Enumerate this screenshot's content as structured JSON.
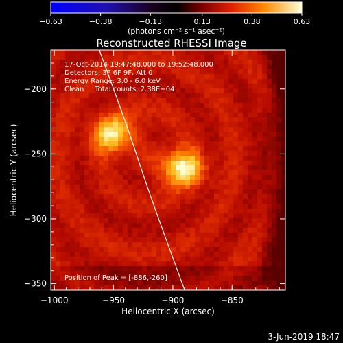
{
  "chart_data": {
    "type": "heatmap",
    "title": "Reconstructed RHESSI Image",
    "xlabel": "Heliocentric X (arcsec)",
    "ylabel": "Heliocentric Y (arcsec)",
    "xlim": [
      -1003,
      -805
    ],
    "ylim": [
      -355,
      -170
    ],
    "x_ticks": [
      -1000,
      -950,
      -900,
      -850
    ],
    "x_tick_labels": [
      "−1000",
      "−950",
      "−900",
      "−850"
    ],
    "y_ticks": [
      -200,
      -250,
      -300,
      -350
    ],
    "y_tick_labels": [
      "−200",
      "−250",
      "−300",
      "−350"
    ],
    "colorbar": {
      "min": -0.63,
      "max": 0.63,
      "colormap": "RHESSI diverging blue-black-red-yellow",
      "ticks": [
        -0.63,
        -0.38,
        -0.13,
        0.13,
        0.38,
        0.63
      ],
      "tick_labels": [
        "−0.63",
        "−0.38",
        "−0.13",
        "0.13",
        "0.38",
        "0.63"
      ],
      "unit_label": "(photons cm⁻² s⁻¹ asec⁻²)"
    },
    "sources": [
      {
        "x": -952,
        "y": -233,
        "level": 0.55
      },
      {
        "x": -895,
        "y": -259,
        "level": 0.6
      }
    ],
    "peak_position": [
      -886,
      -260
    ],
    "limb_curve": [
      [
        -962,
        -170
      ],
      [
        -938,
        -230
      ],
      [
        -920,
        -280
      ],
      [
        -890,
        -355
      ]
    ]
  },
  "annotations": {
    "time_range": "17-Oct-2014 19:47:48.000 to 19:52:48.000",
    "detectors": "Detectors: 3F 6F 9F, Att 0",
    "energy_range": "Energy Range: 3.0 - 6.0 keV",
    "clean": "Clean     Total counts: 2.38E+04",
    "peak": "Position of Peak = [-886,-260]"
  },
  "footer_date": "3-Jun-2019 18:47"
}
